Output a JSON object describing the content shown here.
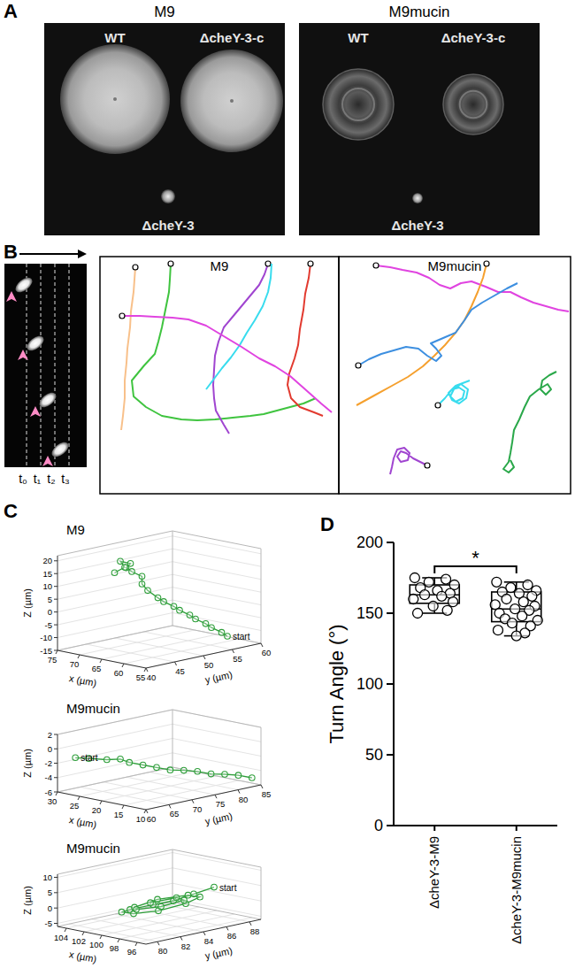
{
  "panel_labels": [
    "A",
    "B",
    "C",
    "D"
  ],
  "panel_a": {
    "plates": [
      {
        "title": "M9",
        "strains": [
          "WT",
          "ΔcheY-3-c",
          "ΔcheY-3"
        ]
      },
      {
        "title": "M9mucin",
        "strains": [
          "WT",
          "ΔcheY-3-c",
          "ΔcheY-3"
        ]
      }
    ]
  },
  "panel_b": {
    "time_labels": [
      "t₀",
      "t₁",
      "t₂",
      "t₃"
    ],
    "track_titles": [
      "M9",
      "M9mucin"
    ]
  },
  "chart_data": [
    {
      "type": "scatter3d",
      "title": "M9",
      "xlabel": "x (µm)",
      "ylabel": "y (µm)",
      "zlabel": "Z (µm)",
      "annotation": "start",
      "xlim": [
        55,
        75
      ],
      "xticks": [
        55,
        60,
        65,
        70,
        75
      ],
      "ylim": [
        40,
        60
      ],
      "yticks": [
        40,
        45,
        50,
        55,
        60
      ],
      "zlim": [
        -15,
        22
      ],
      "zticks": [
        -15,
        -10,
        -5,
        0,
        5,
        10,
        15,
        20
      ],
      "series": [
        {
          "color": "#2e9e3a",
          "marker": "circle",
          "line_style": "solid",
          "x": [
            60,
            60,
            61,
            61,
            62,
            62,
            63,
            63,
            64,
            64,
            65,
            65,
            65,
            66,
            66,
            65,
            66,
            65,
            66
          ],
          "y": [
            58,
            57,
            56,
            55,
            54,
            53,
            52,
            51,
            50,
            49,
            48,
            47,
            47,
            46,
            45,
            45,
            44,
            44,
            43
          ],
          "z": [
            -13,
            -11,
            -9,
            -7,
            -5,
            -3,
            -1,
            1,
            3,
            5,
            8,
            11,
            14,
            16,
            18,
            20,
            21,
            19,
            17
          ]
        }
      ]
    },
    {
      "type": "scatter3d",
      "title": "M9mucin",
      "xlabel": "x (µm)",
      "ylabel": "y (µm)",
      "zlabel": "Z (µm)",
      "annotation": "start",
      "xlim": [
        10,
        30
      ],
      "xticks": [
        10,
        15,
        20,
        25,
        30
      ],
      "ylim": [
        60,
        85
      ],
      "yticks": [
        60,
        65,
        70,
        75,
        80,
        85
      ],
      "zlim": [
        -6,
        2
      ],
      "zticks": [
        -6,
        -4,
        -2,
        0,
        2
      ],
      "series": [
        {
          "color": "#2e9e3a",
          "marker": "circle",
          "line_style": "solid",
          "x": [
            27,
            25,
            23,
            21,
            20,
            19,
            18,
            17,
            16,
            15,
            14,
            13,
            12,
            11
          ],
          "y": [
            61,
            62,
            64,
            65,
            66,
            68,
            70,
            72,
            74,
            76,
            78,
            80,
            82,
            84
          ],
          "z": [
            -1,
            -1,
            -1.2,
            -1,
            -1.5,
            -2,
            -2.5,
            -3,
            -3.2,
            -3.5,
            -4,
            -4.2,
            -4.5,
            -5
          ]
        }
      ]
    },
    {
      "type": "scatter3d",
      "title": "M9mucin",
      "xlabel": "x (µm)",
      "ylabel": "y (µm)",
      "zlabel": "Z (µm)",
      "annotation": "start",
      "xlim": [
        95,
        105
      ],
      "xticks": [
        96,
        98,
        100,
        102,
        104
      ],
      "ylim": [
        79,
        89
      ],
      "yticks": [
        80,
        82,
        84,
        86,
        88
      ],
      "zlim": [
        -6,
        11
      ],
      "zticks": [
        -5,
        0,
        5,
        10
      ],
      "series": [
        {
          "color": "#2e9e3a",
          "marker": "circle",
          "line_style": "solid",
          "x": [
            99,
            100,
            101,
            102,
            102,
            101,
            99,
            97.5,
            97,
            98,
            100,
            101.5,
            101.5,
            100,
            98.5,
            98.5,
            100,
            101
          ],
          "y": [
            88,
            87,
            86,
            85,
            83,
            81.5,
            81,
            82,
            84,
            86,
            86.5,
            85,
            83,
            82,
            83,
            85,
            85.5,
            84
          ],
          "z": [
            3,
            1,
            -1,
            -2,
            -2,
            -1,
            0,
            1,
            2,
            2,
            1,
            0,
            -1,
            0,
            1,
            1.5,
            1,
            0
          ]
        }
      ]
    },
    {
      "type": "box",
      "ylabel": "Turn Angle (°)",
      "categories": [
        "ΔcheY-3-M9",
        "ΔcheY-3-M9mucin"
      ],
      "ylim": [
        0,
        200
      ],
      "yticks": [
        0,
        50,
        100,
        150,
        200
      ],
      "color": "#000000",
      "annotation": "*",
      "boxes": [
        {
          "min": 150,
          "q1": 157,
          "median": 163,
          "q3": 170,
          "max": 175,
          "points": [
            175,
            174,
            172,
            170,
            168,
            166,
            164,
            163,
            162,
            160,
            158,
            155,
            152,
            150
          ]
        },
        {
          "min": 134,
          "q1": 144,
          "median": 153,
          "q3": 165,
          "max": 172,
          "points": [
            172,
            170,
            168,
            166,
            165,
            164,
            162,
            160,
            158,
            156,
            155,
            153,
            152,
            150,
            148,
            146,
            145,
            143,
            141,
            138,
            136,
            134
          ]
        }
      ]
    }
  ]
}
